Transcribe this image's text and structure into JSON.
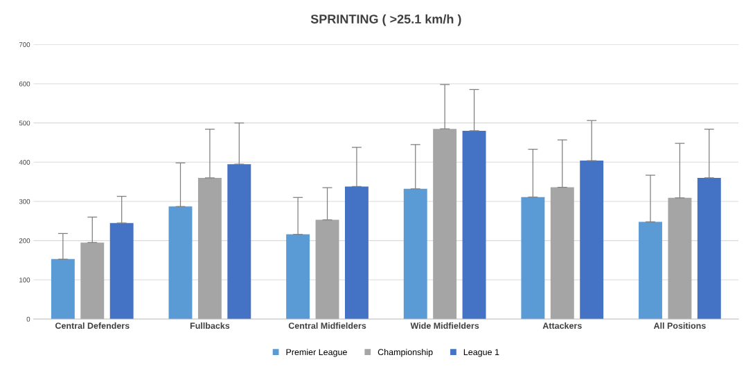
{
  "chart_data": {
    "type": "bar",
    "title": "SPRINTING ( >25.1 km/h )",
    "categories": [
      "Central Defenders",
      "Fullbacks",
      "Central Midfielders",
      "Wide Midfielders",
      "Attackers",
      "All Positions"
    ],
    "series": [
      {
        "name": "Premier League",
        "color": "#5b9bd5",
        "values": [
          153,
          287,
          216,
          332,
          311,
          248
        ],
        "errors": [
          [
            153,
            218
          ],
          [
            287,
            398
          ],
          [
            216,
            310
          ],
          [
            332,
            445
          ],
          [
            311,
            433
          ],
          [
            248,
            367
          ]
        ]
      },
      {
        "name": "Championship",
        "color": "#a5a5a5",
        "values": [
          195,
          360,
          253,
          485,
          336,
          309
        ],
        "errors": [
          [
            195,
            260
          ],
          [
            360,
            484
          ],
          [
            253,
            335
          ],
          [
            485,
            598
          ],
          [
            336,
            457
          ],
          [
            309,
            448
          ]
        ]
      },
      {
        "name": "League 1",
        "color": "#4472c4",
        "values": [
          245,
          395,
          338,
          480,
          404,
          360
        ],
        "errors": [
          [
            245,
            313
          ],
          [
            395,
            500
          ],
          [
            338,
            438
          ],
          [
            480,
            585
          ],
          [
            404,
            506
          ],
          [
            360,
            484
          ]
        ]
      }
    ],
    "ylim": [
      0,
      700
    ],
    "yticks": [
      0,
      100,
      200,
      300,
      400,
      500,
      600,
      700
    ],
    "grid": "y",
    "legend": "bottom"
  }
}
